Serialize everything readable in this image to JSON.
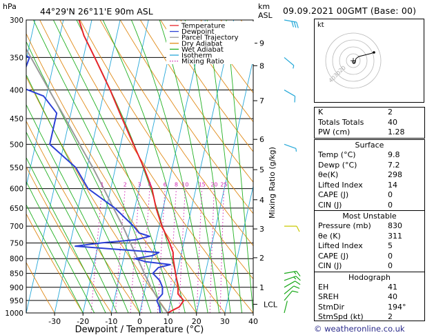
{
  "header": {
    "hpa_label": "hPa",
    "location": "44°29'N  26°11'E  90m  ASL",
    "km_label": "km",
    "asl_label": "ASL",
    "datetime": "09.09.2021  00GMT  (Base: 00)"
  },
  "legend": [
    {
      "label": "Temperature",
      "color": "#e8242a",
      "style": "solid"
    },
    {
      "label": "Dewpoint",
      "color": "#2b3fd6",
      "style": "solid"
    },
    {
      "label": "Parcel Trajectory",
      "color": "#9a9a9a",
      "style": "solid"
    },
    {
      "label": "Dry Adiabat",
      "color": "#e08a17",
      "style": "solid"
    },
    {
      "label": "Wet Adiabat",
      "color": "#20b020",
      "style": "solid"
    },
    {
      "label": "Isotherm",
      "color": "#25a7d8",
      "style": "solid"
    },
    {
      "label": "Mixing Ratio",
      "color": "#d020b0",
      "style": "dotted"
    }
  ],
  "chart_data": {
    "type": "skew-t log-p",
    "xlabel": "Dewpoint / Temperature (°C)",
    "ylabel_left": "hPa",
    "ylabel_right": "Mixing Ratio (g/kg)",
    "pressure_levels": [
      300,
      350,
      400,
      450,
      500,
      550,
      600,
      650,
      700,
      750,
      800,
      850,
      900,
      950,
      1000
    ],
    "temp_ticks": [
      -30,
      -20,
      -10,
      0,
      10,
      20,
      30,
      40
    ],
    "temp_range": [
      -40,
      40
    ],
    "pressure_range": [
      1000,
      300
    ],
    "km_ticks": [
      {
        "label": "9",
        "p": 330
      },
      {
        "label": "8",
        "p": 362
      },
      {
        "label": "7",
        "p": 418
      },
      {
        "label": "6",
        "p": 490
      },
      {
        "label": "5",
        "p": 555
      },
      {
        "label": "4",
        "p": 628
      },
      {
        "label": "3",
        "p": 708
      },
      {
        "label": "2",
        "p": 797
      },
      {
        "label": "1",
        "p": 900
      }
    ],
    "lcl": {
      "label": "LCL",
      "p": 965
    },
    "mixing_ratio_labels": [
      "1",
      "2",
      "3",
      "4",
      "6",
      "8",
      "10",
      "15",
      "20",
      "25"
    ],
    "mixing_ratio_values": [
      1,
      2,
      3,
      4,
      6,
      8,
      10,
      15,
      20,
      25
    ],
    "temperature": {
      "name": "Temperature",
      "p": [
        1000,
        975,
        950,
        925,
        900,
        850,
        800,
        780,
        750,
        700,
        650,
        600,
        550,
        500,
        450,
        400,
        350,
        320,
        300
      ],
      "t": [
        9.8,
        13.5,
        14.5,
        12.0,
        11.5,
        9.5,
        7.5,
        7.0,
        5.0,
        1.0,
        -2.5,
        -5.5,
        -10.0,
        -15.5,
        -21.5,
        -28.0,
        -36.0,
        -41.5,
        -44.5
      ]
    },
    "dewpoint": {
      "name": "Dewpoint",
      "p": [
        1000,
        975,
        950,
        925,
        900,
        875,
        850,
        830,
        820,
        810,
        800,
        790,
        780,
        770,
        760,
        750,
        740,
        730,
        720,
        700,
        650,
        600,
        550,
        500,
        470,
        440,
        410,
        390,
        380,
        350,
        330,
        320,
        310,
        300
      ],
      "t": [
        7.2,
        6.5,
        5.0,
        6.5,
        6.0,
        4.5,
        1.5,
        3.0,
        7.0,
        -2.0,
        -6.0,
        0.0,
        2.0,
        -13.0,
        -28.0,
        -19.0,
        -7.0,
        -2.5,
        -6.5,
        -9.0,
        -17.0,
        -28.0,
        -34.0,
        -45.0,
        -45.0,
        -45.0,
        -51.0,
        -63.0,
        -60.0,
        -59.0,
        -70.0,
        -63.0,
        -63.0,
        -67.0
      ]
    },
    "parcel": {
      "name": "Parcel Trajectory",
      "p": [
        1000,
        965,
        900,
        850,
        800,
        750,
        700,
        650,
        600,
        550,
        500,
        450,
        400,
        350,
        300
      ],
      "t": [
        9.8,
        6.8,
        2.0,
        -1.5,
        -5.0,
        -8.8,
        -12.8,
        -17.5,
        -22.5,
        -28.0,
        -34.5,
        -41.5,
        -49.5,
        -58.5,
        -69.0
      ]
    },
    "wind_barbs": [
      {
        "p": 1000,
        "dir": 194,
        "spd": 2
      },
      {
        "p": 950,
        "dir": 220,
        "spd": 10
      },
      {
        "p": 925,
        "dir": 230,
        "spd": 10
      },
      {
        "p": 900,
        "dir": 240,
        "spd": 10
      },
      {
        "p": 875,
        "dir": 250,
        "spd": 15
      },
      {
        "p": 850,
        "dir": 260,
        "spd": 15
      },
      {
        "p": 700,
        "dir": 270,
        "spd": 10
      },
      {
        "p": 500,
        "dir": 290,
        "spd": 5
      },
      {
        "p": 400,
        "dir": 300,
        "spd": 10
      },
      {
        "p": 350,
        "dir": 310,
        "spd": 5
      },
      {
        "p": 300,
        "dir": 280,
        "spd": 30
      }
    ]
  },
  "hodograph": {
    "unit_label": "kt",
    "ring_labels": [
      "20",
      "30",
      "40"
    ],
    "u": [
      0.5,
      1.5,
      2.5,
      4.0,
      8.0,
      14.0,
      20.0,
      26.0,
      30.0
    ],
    "v": [
      -1.5,
      -1.0,
      -0.5,
      1.0,
      2.0,
      2.5,
      3.0,
      3.5,
      4.0
    ]
  },
  "indices": {
    "rows": [
      {
        "label": "K",
        "value": "2"
      },
      {
        "label": "Totals Totals",
        "value": "40"
      },
      {
        "label": "PW (cm)",
        "value": "1.28"
      }
    ]
  },
  "surface": {
    "title": "Surface",
    "rows": [
      {
        "label": "Temp (°C)",
        "value": "9.8"
      },
      {
        "label": "Dewp (°C)",
        "value": "7.2"
      },
      {
        "label": "θe(K)",
        "value": "298"
      },
      {
        "label": "Lifted Index",
        "value": "14"
      },
      {
        "label": "CAPE (J)",
        "value": "0"
      },
      {
        "label": "CIN (J)",
        "value": "0"
      }
    ]
  },
  "most_unstable": {
    "title": "Most Unstable",
    "rows": [
      {
        "label": "Pressure (mb)",
        "value": "830"
      },
      {
        "label": "θe (K)",
        "value": "311"
      },
      {
        "label": "Lifted Index",
        "value": "5"
      },
      {
        "label": "CAPE (J)",
        "value": "0"
      },
      {
        "label": "CIN (J)",
        "value": "0"
      }
    ]
  },
  "hodograph_table": {
    "title": "Hodograph",
    "rows": [
      {
        "label": "EH",
        "value": "41"
      },
      {
        "label": "SREH",
        "value": "40"
      },
      {
        "label": "StmDir",
        "value": "194°"
      },
      {
        "label": "StmSpd (kt)",
        "value": "2"
      }
    ]
  },
  "copyright": "© weatheronline.co.uk"
}
